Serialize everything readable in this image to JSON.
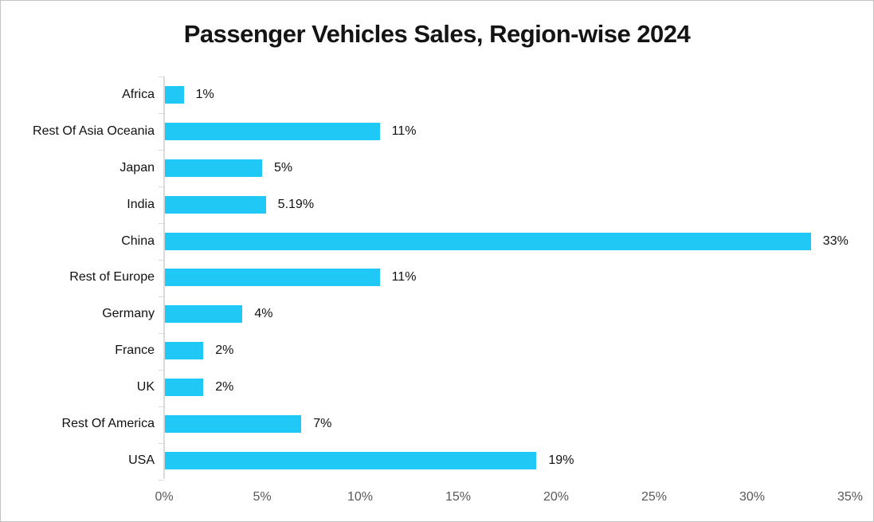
{
  "chart_data": {
    "type": "bar",
    "orientation": "horizontal",
    "title": "Passenger Vehicles Sales, Region-wise 2024",
    "categories": [
      "Africa",
      "Rest Of Asia Oceania",
      "Japan",
      "India",
      "China",
      "Rest of Europe",
      "Germany",
      "France",
      "UK",
      "Rest Of America",
      "USA"
    ],
    "values": [
      1,
      11,
      5,
      5.19,
      33,
      11,
      4,
      2,
      2,
      7,
      19
    ],
    "data_labels": [
      "1%",
      "11%",
      "5%",
      "5.19%",
      "33%",
      "11%",
      "4%",
      "2%",
      "2%",
      "7%",
      "19%"
    ],
    "x_tick_labels": [
      "0%",
      "5%",
      "10%",
      "15%",
      "20%",
      "25%",
      "30%",
      "35%"
    ],
    "xlim": [
      0,
      35
    ],
    "xlabel": "",
    "ylabel": "",
    "grid": false,
    "legend": false,
    "colors": {
      "bar": "#1FC8F5",
      "axis_line": "#D9D9D9",
      "x_tick_label": "#595959",
      "category_label": "#111111",
      "data_label": "#111111",
      "frame_border": "#C2C2C2"
    }
  }
}
